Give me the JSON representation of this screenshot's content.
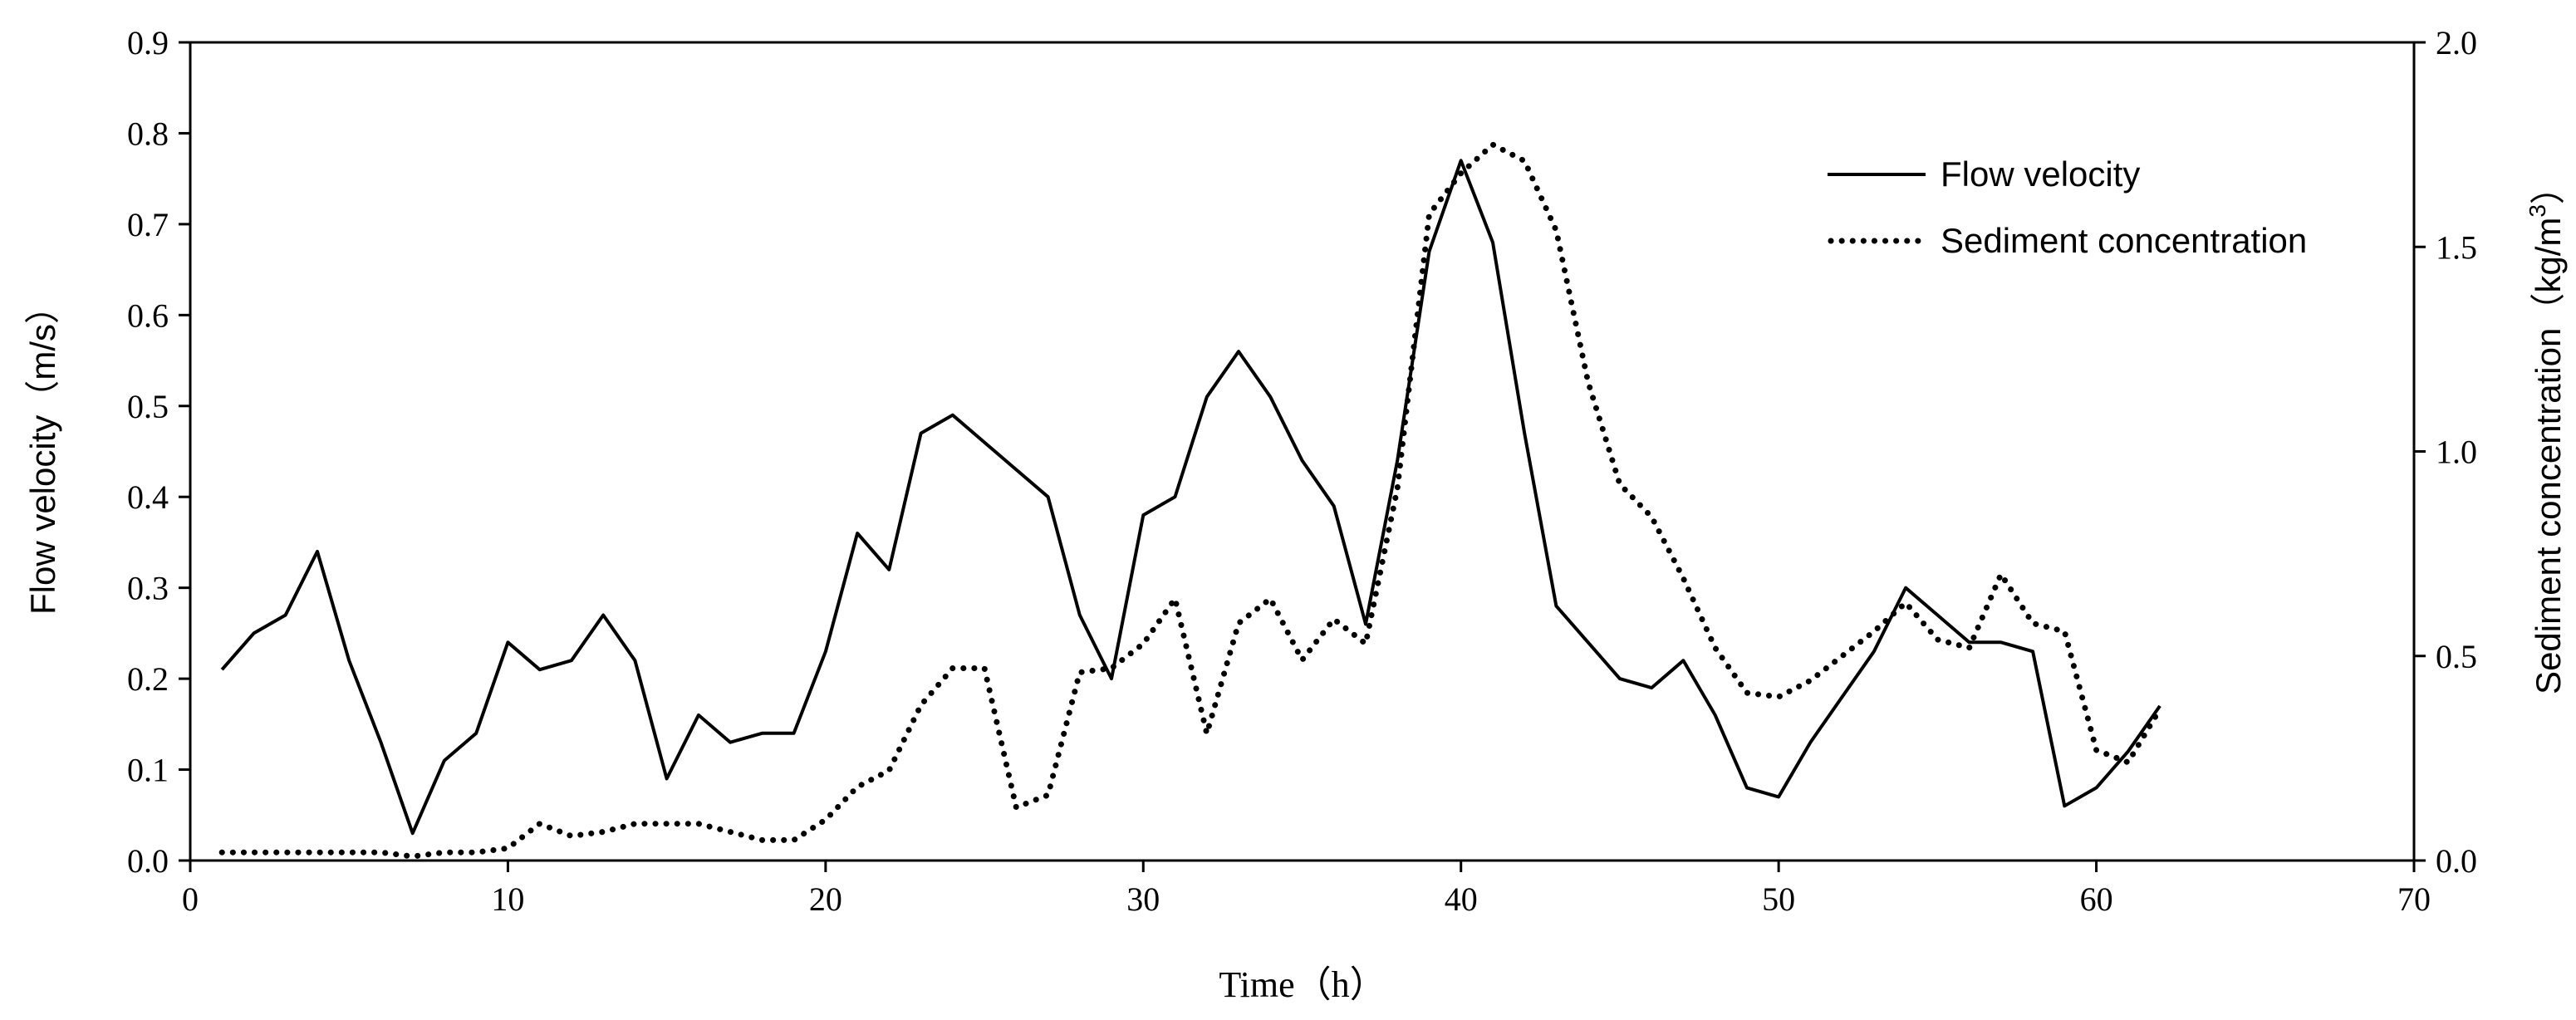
{
  "chart_data": {
    "type": "line",
    "xlabel": "Time（h）",
    "ylabel_left": "Flow velocity（m/s）",
    "ylabel_right_text": "Sediment concentration（kg/m",
    "ylabel_right_sup": "3",
    "ylabel_right_close": "）",
    "xlim": [
      0,
      70
    ],
    "ylim_left": [
      0,
      0.9
    ],
    "ylim_right": [
      0,
      2.0
    ],
    "x_ticks": [
      "0",
      "10",
      "20",
      "30",
      "40",
      "50",
      "60",
      "70"
    ],
    "y_left_ticks": [
      "0.0",
      "0.1",
      "0.2",
      "0.3",
      "0.4",
      "0.5",
      "0.6",
      "0.7",
      "0.8",
      "0.9"
    ],
    "y_right_ticks": [
      "0.0",
      "0.5",
      "1.0",
      "1.5",
      "2.0"
    ],
    "grid": false,
    "legend_position": "top-right",
    "series": [
      {
        "name": "Flow velocity",
        "axis": "left",
        "style": "solid",
        "color": "#000000",
        "x": [
          1,
          2,
          3,
          4,
          5,
          6,
          7,
          8,
          9,
          10,
          11,
          12,
          13,
          14,
          15,
          16,
          17,
          18,
          19,
          20,
          21,
          22,
          23,
          24,
          25,
          26,
          27,
          28,
          29,
          30,
          31,
          32,
          33,
          34,
          35,
          36,
          37,
          38,
          39,
          40,
          41,
          42,
          43,
          44,
          45,
          46,
          47,
          48,
          49,
          50,
          51,
          52,
          53,
          54,
          55,
          56,
          57,
          58,
          59,
          60,
          61,
          62
        ],
        "values": [
          0.21,
          0.25,
          0.27,
          0.34,
          0.22,
          0.13,
          0.03,
          0.11,
          0.14,
          0.24,
          0.21,
          0.22,
          0.27,
          0.22,
          0.09,
          0.16,
          0.13,
          0.14,
          0.14,
          0.23,
          0.36,
          0.32,
          0.47,
          0.49,
          0.46,
          0.43,
          0.4,
          0.27,
          0.2,
          0.38,
          0.4,
          0.51,
          0.56,
          0.51,
          0.44,
          0.39,
          0.26,
          0.44,
          0.67,
          0.77,
          0.68,
          0.47,
          0.28,
          0.24,
          0.2,
          0.19,
          0.22,
          0.16,
          0.08,
          0.07,
          0.13,
          0.18,
          0.23,
          0.3,
          0.27,
          0.24,
          0.24,
          0.23,
          0.06,
          0.08,
          0.12,
          0.17
        ]
      },
      {
        "name": "Sediment concentration",
        "axis": "right",
        "style": "dotted",
        "color": "#000000",
        "x": [
          1,
          2,
          3,
          4,
          5,
          6,
          7,
          8,
          9,
          10,
          11,
          12,
          13,
          14,
          15,
          16,
          17,
          18,
          19,
          20,
          21,
          22,
          23,
          24,
          25,
          26,
          27,
          28,
          29,
          30,
          31,
          32,
          33,
          34,
          35,
          36,
          37,
          38,
          39,
          40,
          41,
          42,
          43,
          44,
          45,
          46,
          47,
          48,
          49,
          50,
          51,
          52,
          53,
          54,
          55,
          56,
          57,
          58,
          59,
          60,
          61,
          62
        ],
        "values": [
          0.02,
          0.02,
          0.02,
          0.02,
          0.02,
          0.02,
          0.01,
          0.02,
          0.02,
          0.03,
          0.09,
          0.06,
          0.07,
          0.09,
          0.09,
          0.09,
          0.07,
          0.05,
          0.05,
          0.1,
          0.18,
          0.22,
          0.38,
          0.47,
          0.47,
          0.13,
          0.16,
          0.46,
          0.47,
          0.53,
          0.64,
          0.31,
          0.58,
          0.64,
          0.49,
          0.59,
          0.53,
          0.91,
          1.58,
          1.68,
          1.75,
          1.71,
          1.54,
          1.17,
          0.92,
          0.84,
          0.69,
          0.52,
          0.41,
          0.4,
          0.44,
          0.5,
          0.56,
          0.63,
          0.54,
          0.52,
          0.7,
          0.58,
          0.56,
          0.27,
          0.24,
          0.37
        ]
      }
    ]
  }
}
